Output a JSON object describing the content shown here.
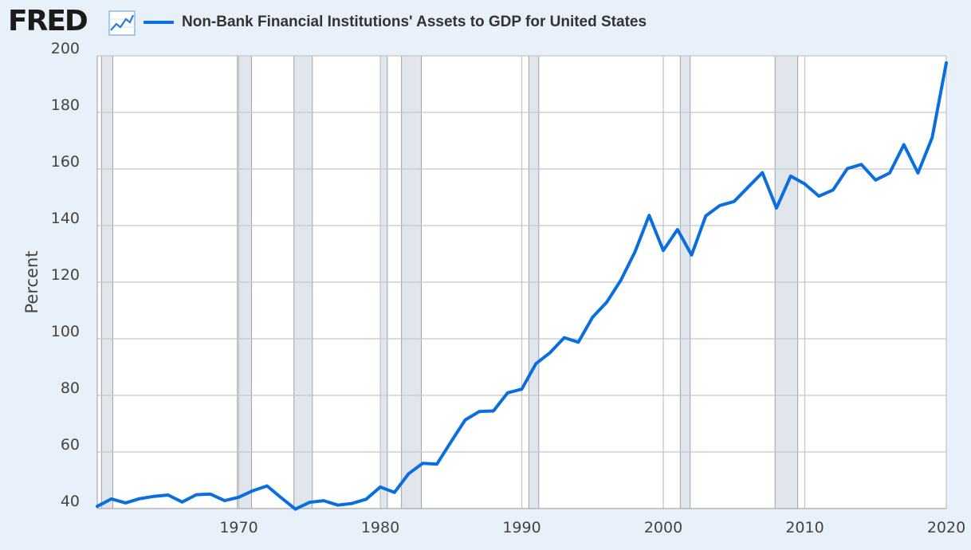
{
  "header": {
    "logo_text": "FRED",
    "logo_icon": "trend-chart-icon",
    "series_title": "Non-Bank Financial Institutions' Assets to GDP for United States"
  },
  "colors": {
    "line": "#0a6ee0",
    "background": "#e8f0f9",
    "plot_background": "#ffffff",
    "recession_shade": "#e1e6ec",
    "grid": "#c5c5c5"
  },
  "chart_data": {
    "type": "line",
    "title": "Non-Bank Financial Institutions' Assets to GDP for United States",
    "xlabel": "",
    "ylabel": "Percent",
    "xlim": [
      1960,
      2020
    ],
    "ylim": [
      40,
      200
    ],
    "xticks": [
      1970,
      1980,
      1990,
      2000,
      2010,
      2020
    ],
    "yticks": [
      40,
      60,
      80,
      100,
      120,
      140,
      160,
      180,
      200
    ],
    "grid": true,
    "recessions": [
      [
        1960.3,
        1961.1
      ],
      [
        1969.9,
        1970.9
      ],
      [
        1973.9,
        1975.2
      ],
      [
        1980.0,
        1980.5
      ],
      [
        1981.5,
        1982.9
      ],
      [
        1990.5,
        1991.2
      ],
      [
        2001.2,
        2001.9
      ],
      [
        2007.9,
        2009.5
      ]
    ],
    "series": [
      {
        "name": "Non-Bank Financial Institutions' Assets to GDP for United States",
        "x": [
          1960,
          1961,
          1962,
          1963,
          1964,
          1965,
          1966,
          1967,
          1968,
          1969,
          1970,
          1971,
          1972,
          1973,
          1974,
          1975,
          1976,
          1977,
          1978,
          1979,
          1980,
          1981,
          1982,
          1983,
          1984,
          1985,
          1986,
          1987,
          1988,
          1989,
          1990,
          1991,
          1992,
          1993,
          1994,
          1995,
          1996,
          1997,
          1998,
          1999,
          2000,
          2001,
          2002,
          2003,
          2004,
          2005,
          2006,
          2007,
          2008,
          2009,
          2010,
          2011,
          2012,
          2013,
          2014,
          2015,
          2016,
          2017,
          2018,
          2019,
          2020
        ],
        "values": [
          40.8,
          43.4,
          42.0,
          43.5,
          44.3,
          44.8,
          42.3,
          44.9,
          45.1,
          42.8,
          44.0,
          46.3,
          48.0,
          43.8,
          39.8,
          42.2,
          42.8,
          41.2,
          41.8,
          43.3,
          47.6,
          45.7,
          52.3,
          56.0,
          55.7,
          63.6,
          71.3,
          74.3,
          74.5,
          80.9,
          82.2,
          91.2,
          95.1,
          100.4,
          98.8,
          107.6,
          112.9,
          120.7,
          130.7,
          143.6,
          131.2,
          138.6,
          129.6,
          143.4,
          147.1,
          148.5,
          153.6,
          158.7,
          146.2,
          157.5,
          154.7,
          150.4,
          152.6,
          160.1,
          161.6,
          156.1,
          158.6,
          168.6,
          158.6,
          171.1,
          197.5
        ]
      }
    ]
  }
}
